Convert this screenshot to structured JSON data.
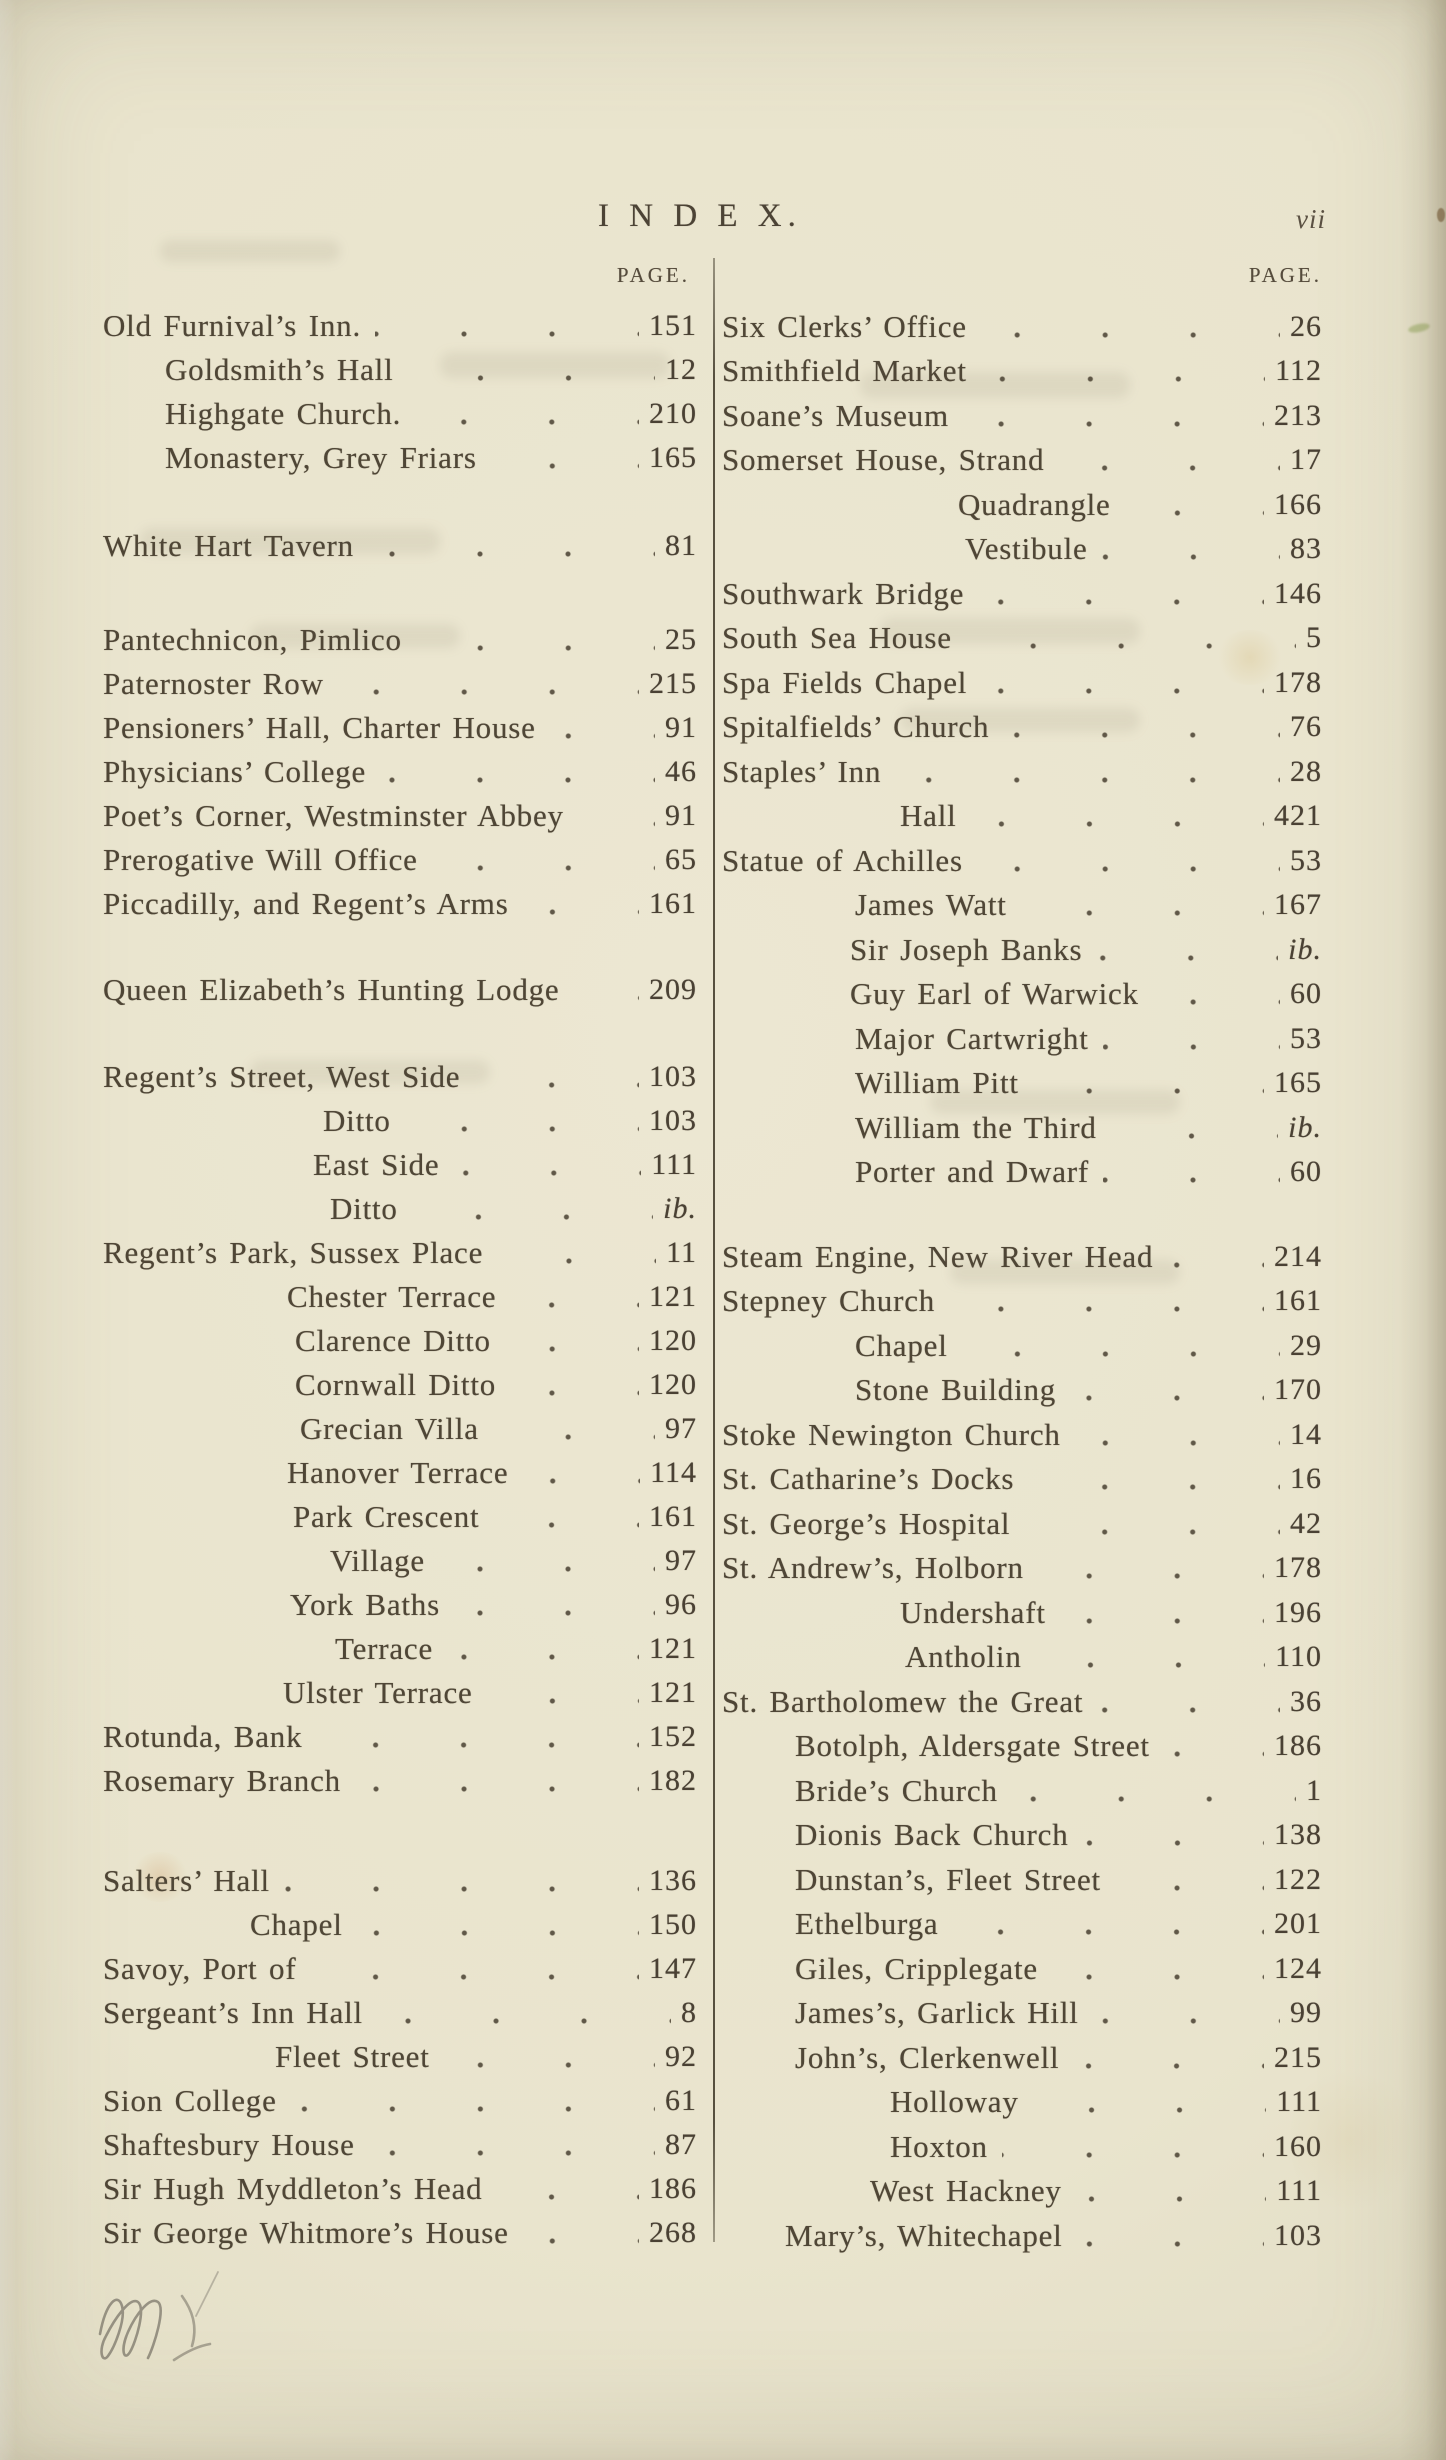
{
  "page": {
    "title": "I N D E X.",
    "folio": "vii",
    "page_label_left": "PAGE.",
    "page_label_right": "PAGE."
  },
  "index": {
    "left_rows": [
      {
        "label": "Old Furnival’s Inn.",
        "page": "151",
        "indent": 0,
        "gap": 0
      },
      {
        "label": "Goldsmith’s Hall",
        "page": "12",
        "indent": 62,
        "gap": 0
      },
      {
        "label": "Highgate Church.",
        "page": "210",
        "indent": 62,
        "gap": 0
      },
      {
        "label": "Monastery, Grey Friars",
        "page": "165",
        "indent": 62,
        "gap": 0
      },
      {
        "label": "White Hart Tavern",
        "page": "81",
        "indent": 0,
        "gap": 44
      },
      {
        "label": "Pantechnicon, Pimlico",
        "page": "25",
        "indent": 0,
        "gap": 50
      },
      {
        "label": "Paternoster Row",
        "page": "215",
        "indent": 0,
        "gap": 0
      },
      {
        "label": "Pensioners’ Hall, Charter House",
        "page": "91",
        "indent": 0,
        "gap": 0
      },
      {
        "label": "Physicians’ College",
        "page": "46",
        "indent": 0,
        "gap": 0
      },
      {
        "label": "Poet’s Corner, Westminster Abbey",
        "page": "91",
        "indent": 0,
        "gap": 0
      },
      {
        "label": "Prerogative Will Office",
        "page": "65",
        "indent": 0,
        "gap": 0
      },
      {
        "label": "Piccadilly, and Regent’s Arms",
        "page": "161",
        "indent": 0,
        "gap": 0
      },
      {
        "label": "Queen Elizabeth’s Hunting Lodge",
        "page": "209",
        "indent": 0,
        "gap": 42
      },
      {
        "label": "Regent’s Street, West Side",
        "page": "103",
        "indent": 0,
        "gap": 43
      },
      {
        "label": "Ditto",
        "page": "103",
        "indent": 220,
        "gap": 0
      },
      {
        "label": "East Side",
        "page": "111",
        "indent": 210,
        "gap": 0
      },
      {
        "label": "Ditto",
        "page": "ib.",
        "indent": 227,
        "gap": 0
      },
      {
        "label": "Regent’s Park, Sussex Place",
        "page": "11",
        "indent": 0,
        "gap": 0
      },
      {
        "label": "Chester Terrace",
        "page": "121",
        "indent": 184,
        "gap": 0
      },
      {
        "label": "Clarence Ditto",
        "page": "120",
        "indent": 192,
        "gap": 0
      },
      {
        "label": "Cornwall Ditto",
        "page": "120",
        "indent": 192,
        "gap": 0
      },
      {
        "label": "Grecian Villa",
        "page": "97",
        "indent": 197,
        "gap": 0
      },
      {
        "label": "Hanover Terrace",
        "page": "114",
        "indent": 184,
        "gap": 0
      },
      {
        "label": "Park Crescent",
        "page": "161",
        "indent": 190,
        "gap": 0
      },
      {
        "label": "Village",
        "page": "97",
        "indent": 227,
        "gap": 0
      },
      {
        "label": "York Baths",
        "page": "96",
        "indent": 187,
        "gap": 0
      },
      {
        "label": "Terrace",
        "page": "121",
        "indent": 232,
        "gap": 0
      },
      {
        "label": "Ulster Terrace",
        "page": "121",
        "indent": 180,
        "gap": 0
      },
      {
        "label": "Rotunda, Bank",
        "page": "152",
        "indent": 0,
        "gap": 0
      },
      {
        "label": "Rosemary Branch",
        "page": "182",
        "indent": 0,
        "gap": 0
      },
      {
        "label": "Salters’ Hall",
        "page": "136",
        "indent": 0,
        "gap": 56
      },
      {
        "label": "Chapel",
        "page": "150",
        "indent": 147,
        "gap": 0
      },
      {
        "label": "Savoy, Port of",
        "page": "147",
        "indent": 0,
        "gap": 0
      },
      {
        "label": "Sergeant’s Inn Hall",
        "page": "8",
        "indent": 0,
        "gap": 0
      },
      {
        "label": "Fleet Street",
        "page": "92",
        "indent": 172,
        "gap": 0
      },
      {
        "label": "Sion College",
        "page": "61",
        "indent": 0,
        "gap": 0
      },
      {
        "label": "Shaftesbury House",
        "page": "87",
        "indent": 0,
        "gap": 0
      },
      {
        "label": "Sir Hugh Myddleton’s Head",
        "page": "186",
        "indent": 0,
        "gap": 0
      },
      {
        "label": "Sir George Whitmore’s House",
        "page": "268",
        "indent": 0,
        "gap": 0
      }
    ],
    "right_rows": [
      {
        "label": "Six Clerks’ Office",
        "page": "26",
        "indent": 0,
        "gap": 0
      },
      {
        "label": "Smithfield Market",
        "page": "112",
        "indent": 0,
        "gap": 0
      },
      {
        "label": "Soane’s Museum",
        "page": "213",
        "indent": 0,
        "gap": 0
      },
      {
        "label": "Somerset House, Strand",
        "page": "17",
        "indent": 0,
        "gap": 0
      },
      {
        "label": "Quadrangle",
        "page": "166",
        "indent": 236,
        "gap": 0
      },
      {
        "label": "Vestibule",
        "page": "83",
        "indent": 243,
        "gap": 0
      },
      {
        "label": "Southwark Bridge",
        "page": "146",
        "indent": 0,
        "gap": 0
      },
      {
        "label": "South Sea House",
        "page": "5",
        "indent": 0,
        "gap": 0
      },
      {
        "label": "Spa Fields Chapel",
        "page": "178",
        "indent": 0,
        "gap": 0
      },
      {
        "label": "Spitalfields’ Church",
        "page": "76",
        "indent": 0,
        "gap": 0
      },
      {
        "label": "Staples’ Inn",
        "page": "28",
        "indent": 0,
        "gap": 0
      },
      {
        "label": "Hall",
        "page": "421",
        "indent": 178,
        "gap": 0
      },
      {
        "label": "Statue of Achilles",
        "page": "53",
        "indent": 0,
        "gap": 0
      },
      {
        "label": "James Watt",
        "page": "167",
        "indent": 133,
        "gap": 0
      },
      {
        "label": "Sir Joseph Banks",
        "page": "ib.",
        "indent": 128,
        "gap": 0
      },
      {
        "label": "Guy Earl of Warwick",
        "page": "60",
        "indent": 128,
        "gap": 0
      },
      {
        "label": "Major Cartwright",
        "page": "53",
        "indent": 133,
        "gap": 0
      },
      {
        "label": "William Pitt",
        "page": "165",
        "indent": 133,
        "gap": 0
      },
      {
        "label": "William the Third",
        "page": "ib.",
        "indent": 133,
        "gap": 0
      },
      {
        "label": "Porter and Dwarf",
        "page": "60",
        "indent": 133,
        "gap": 0
      },
      {
        "label": "Steam Engine, New River Head",
        "page": "214",
        "indent": 0,
        "gap": 40
      },
      {
        "label": "Stepney Church",
        "page": "161",
        "indent": 0,
        "gap": 0
      },
      {
        "label": "Chapel",
        "page": "29",
        "indent": 133,
        "gap": 0
      },
      {
        "label": "Stone Building",
        "page": "170",
        "indent": 133,
        "gap": 0
      },
      {
        "label": "Stoke Newington Church",
        "page": "14",
        "indent": 0,
        "gap": 0
      },
      {
        "label": "St. Catharine’s Docks",
        "page": "16",
        "indent": 0,
        "gap": 0
      },
      {
        "label": "St. George’s Hospital",
        "page": "42",
        "indent": 0,
        "gap": 0
      },
      {
        "label": "St. Andrew’s, Holborn",
        "page": "178",
        "indent": 0,
        "gap": 0
      },
      {
        "label": "Undershaft",
        "page": "196",
        "indent": 178,
        "gap": 0
      },
      {
        "label": "Antholin",
        "page": "110",
        "indent": 183,
        "gap": 0
      },
      {
        "label": "St. Bartholomew the Great",
        "page": "36",
        "indent": 0,
        "gap": 0
      },
      {
        "label": "Botolph, Aldersgate Street",
        "page": "186",
        "indent": 73,
        "gap": 0
      },
      {
        "label": "Bride’s Church",
        "page": "1",
        "indent": 73,
        "gap": 0
      },
      {
        "label": "Dionis Back Church",
        "page": "138",
        "indent": 73,
        "gap": 0
      },
      {
        "label": "Dunstan’s, Fleet Street",
        "page": "122",
        "indent": 73,
        "gap": 0
      },
      {
        "label": "Ethelburga",
        "page": "201",
        "indent": 73,
        "gap": 0
      },
      {
        "label": "Giles, Cripplegate",
        "page": "124",
        "indent": 73,
        "gap": 0
      },
      {
        "label": "James’s, Garlick Hill",
        "page": "99",
        "indent": 73,
        "gap": 0
      },
      {
        "label": "John’s, Clerkenwell",
        "page": "215",
        "indent": 73,
        "gap": 0
      },
      {
        "label": "Holloway",
        "page": "111",
        "indent": 168,
        "gap": 0
      },
      {
        "label": "Hoxton",
        "page": "160",
        "indent": 168,
        "gap": 0
      },
      {
        "label": "West Hackney",
        "page": "111",
        "indent": 148,
        "gap": 0
      },
      {
        "label": "Mary’s, Whitechapel",
        "page": "103",
        "indent": 63,
        "gap": 0
      }
    ]
  },
  "marks": {
    "pencil_annotation": "handwritten pencil scribble"
  },
  "colors": {
    "paper": "#e9e4cd",
    "ink": "#4f4636",
    "rule": "#57503f"
  }
}
